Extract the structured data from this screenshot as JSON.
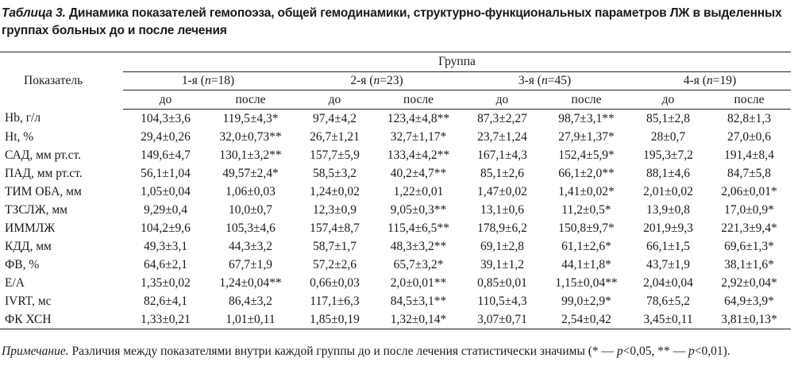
{
  "caption": {
    "label": "Таблица 3.",
    "text": "Динамика показателей гемопоэза, общей гемодинамики, структурно-функциональных параметров ЛЖ в выделенных группах больных до и после лечения"
  },
  "table": {
    "row_header": "Показатель",
    "group_header": "Группа",
    "groups": [
      {
        "prefix": "1-я (",
        "n": "n",
        "suffix": "=18)"
      },
      {
        "prefix": "2-я (",
        "n": "n",
        "suffix": "=23)"
      },
      {
        "prefix": "3-я (",
        "n": "n",
        "suffix": "=45)"
      },
      {
        "prefix": "4-я (",
        "n": "n",
        "suffix": "=19)"
      }
    ],
    "subheaders": [
      "до",
      "после",
      "до",
      "после",
      "до",
      "после",
      "до",
      "после"
    ],
    "rows": [
      {
        "name": "Hb, г/л",
        "values": [
          "104,3±3,6",
          "119,5±4,3*",
          "97,4±4,2",
          "123,4±4,8**",
          "87,3±2,27",
          "98,7±3,1**",
          "85,1±2,8",
          "82,8±1,3"
        ]
      },
      {
        "name": "Ht, %",
        "values": [
          "29,4±0,26",
          "32,0±0,73**",
          "26,7±1,21",
          "32,7±1,17*",
          "23,7±1,24",
          "27,9±1,37*",
          "28±0,7",
          "27,0±0,6"
        ]
      },
      {
        "name": "САД, мм рт.ст.",
        "values": [
          "149,6±4,7",
          "130,1±3,2**",
          "157,7±5,9",
          "133,4±4,2**",
          "167,1±4,3",
          "152,4±5,9*",
          "195,3±7,2",
          "191,4±8,4"
        ]
      },
      {
        "name": "ПАД, мм рт.ст.",
        "values": [
          "56,1±1,04",
          "49,57±2,4*",
          "58,5±3,2",
          "40,2±4,7**",
          "85,1±2,6",
          "66,1±2,0**",
          "88,1±4,6",
          "84,7±5,8"
        ]
      },
      {
        "name": "ТИМ ОБА, мм",
        "values": [
          "1,05±0,04",
          "1,06±0,03",
          "1,24±0,02",
          "1,22±0,01",
          "1,47±0,02",
          "1,41±0,02*",
          "2,01±0,02",
          "2,06±0,01*"
        ]
      },
      {
        "name": "ТЗСЛЖ, мм",
        "values": [
          "9,29±0,4",
          "10,0±0,7",
          "12,3±0,9",
          "9,05±0,3**",
          "13,1±0,6",
          "11,2±0,5*",
          "13,9±0,8",
          "17,0±0,9*"
        ]
      },
      {
        "name": "ИММЛЖ",
        "values": [
          "104,2±9,6",
          "105,3±4,6",
          "157,4±8,7",
          "115,4±6,5**",
          "178,9±6,2",
          "150,8±9,7*",
          "201,9±9,3",
          "221,3±9,4*"
        ]
      },
      {
        "name": "КДД, мм",
        "values": [
          "49,3±3,1",
          "44,3±3,2",
          "58,7±1,7",
          "48,3±3,2**",
          "69,1±2,8",
          "61,1±2,6*",
          "66,1±1,5",
          "69,6±1,3*"
        ]
      },
      {
        "name": "ФВ, %",
        "values": [
          "64,6±2,1",
          "67,7±1,9",
          "57,2±2,6",
          "65,7±3,2*",
          "39,1±1,2",
          "44,1±1,8*",
          "43,7±1,9",
          "38,1±1,6*"
        ]
      },
      {
        "name": "E/A",
        "values": [
          "1,35±0,02",
          "1,24±0,04**",
          "0,66±0,03",
          "2,0±0,01**",
          "0,85±0,01",
          "1,15±0,04**",
          "2,04±0,04",
          "2,92±0,04*"
        ]
      },
      {
        "name": "IVRT, мс",
        "values": [
          "82,6±4,1",
          "86,4±3,2",
          "117,1±6,3",
          "84,5±3,1**",
          "110,5±4,3",
          "99,0±2,9*",
          "78,6±5,2",
          "64,9±3,9*"
        ]
      },
      {
        "name": "ФК ХСН",
        "values": [
          "1,33±0,21",
          "1,01±0,11",
          "1,85±0,19",
          "1,32±0,14*",
          "3,07±0,71",
          "2,54±0,42",
          "3,45±0,11",
          "3,81±0,13*"
        ]
      }
    ]
  },
  "note": {
    "label": "Примечание.",
    "text_a": " Различия между показателями внутри каждой группы до и после лечения статистически значимы (* — ",
    "p1": "p",
    "text_b": "<0,05, ** — ",
    "p2": "p",
    "text_c": "<0,01)."
  }
}
